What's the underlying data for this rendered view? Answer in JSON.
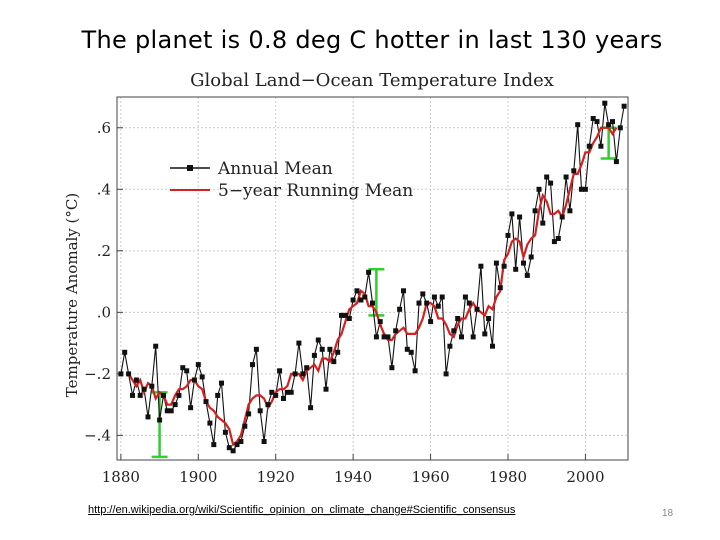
{
  "slide": {
    "title": "The planet is 0.8 deg C hotter in last 130 years",
    "source_url": "http://en.wikipedia.org/wiki/Scientific_opinion_on_climate_change#Scientific_consensus",
    "page_number": "18"
  },
  "colors": {
    "annual": "#111111",
    "running": "#d62020",
    "error_bars": "#33cc33",
    "grid": "#cccccc"
  },
  "chart_data": {
    "type": "line",
    "title": "Global Land−Ocean Temperature Index",
    "ylabel": "Temperature Anomaly (°C)",
    "xlabel": "",
    "xlim": [
      1879,
      2011
    ],
    "ylim": [
      -0.48,
      0.7
    ],
    "x_ticks": [
      1880,
      1900,
      1920,
      1940,
      1960,
      1980,
      2000
    ],
    "x_tick_labels": [
      "1880",
      "1900",
      "1920",
      "1940",
      "1960",
      "1980",
      "2000"
    ],
    "y_ticks": [
      -0.4,
      -0.2,
      0.0,
      0.2,
      0.4,
      0.6
    ],
    "y_tick_labels": [
      "−.4",
      "−.2",
      ".0",
      ".2",
      ".4",
      ".6"
    ],
    "grid": true,
    "legend_position": "top-left",
    "years": [
      1880,
      1881,
      1882,
      1883,
      1884,
      1885,
      1886,
      1887,
      1888,
      1889,
      1890,
      1891,
      1892,
      1893,
      1894,
      1895,
      1896,
      1897,
      1898,
      1899,
      1900,
      1901,
      1902,
      1903,
      1904,
      1905,
      1906,
      1907,
      1908,
      1909,
      1910,
      1911,
      1912,
      1913,
      1914,
      1915,
      1916,
      1917,
      1918,
      1919,
      1920,
      1921,
      1922,
      1923,
      1924,
      1925,
      1926,
      1927,
      1928,
      1929,
      1930,
      1931,
      1932,
      1933,
      1934,
      1935,
      1936,
      1937,
      1938,
      1939,
      1940,
      1941,
      1942,
      1943,
      1944,
      1945,
      1946,
      1947,
      1948,
      1949,
      1950,
      1951,
      1952,
      1953,
      1954,
      1955,
      1956,
      1957,
      1958,
      1959,
      1960,
      1961,
      1962,
      1963,
      1964,
      1965,
      1966,
      1967,
      1968,
      1969,
      1970,
      1971,
      1972,
      1973,
      1974,
      1975,
      1976,
      1977,
      1978,
      1979,
      1980,
      1981,
      1982,
      1983,
      1984,
      1985,
      1986,
      1987,
      1988,
      1989,
      1990,
      1991,
      1992,
      1993,
      1994,
      1995,
      1996,
      1997,
      1998,
      1999,
      2000,
      2001,
      2002,
      2003,
      2004,
      2005,
      2006,
      2007,
      2008,
      2009,
      2010
    ],
    "series": [
      {
        "name": "Annual Mean",
        "values": [
          -0.2,
          -0.13,
          -0.2,
          -0.27,
          -0.22,
          -0.27,
          -0.25,
          -0.34,
          -0.24,
          -0.11,
          -0.35,
          -0.27,
          -0.32,
          -0.32,
          -0.3,
          -0.27,
          -0.18,
          -0.19,
          -0.31,
          -0.22,
          -0.17,
          -0.21,
          -0.29,
          -0.36,
          -0.43,
          -0.27,
          -0.23,
          -0.39,
          -0.44,
          -0.45,
          -0.43,
          -0.42,
          -0.37,
          -0.33,
          -0.17,
          -0.12,
          -0.32,
          -0.42,
          -0.3,
          -0.26,
          -0.27,
          -0.19,
          -0.28,
          -0.26,
          -0.26,
          -0.2,
          -0.1,
          -0.2,
          -0.18,
          -0.31,
          -0.14,
          -0.09,
          -0.12,
          -0.25,
          -0.12,
          -0.16,
          -0.13,
          -0.01,
          -0.01,
          -0.02,
          0.04,
          0.07,
          0.04,
          0.05,
          0.13,
          0.03,
          -0.08,
          -0.03,
          -0.08,
          -0.08,
          -0.18,
          -0.06,
          0.01,
          0.07,
          -0.12,
          -0.13,
          -0.19,
          0.03,
          0.06,
          0.03,
          -0.03,
          0.05,
          0.02,
          0.05,
          -0.2,
          -0.11,
          -0.06,
          -0.02,
          -0.08,
          0.05,
          0.03,
          -0.08,
          0.01,
          0.15,
          -0.07,
          -0.02,
          -0.11,
          0.16,
          0.08,
          0.15,
          0.25,
          0.32,
          0.14,
          0.31,
          0.16,
          0.12,
          0.18,
          0.33,
          0.4,
          0.29,
          0.44,
          0.42,
          0.23,
          0.24,
          0.31,
          0.44,
          0.33,
          0.46,
          0.61,
          0.4,
          0.4,
          0.54,
          0.63,
          0.62,
          0.54,
          0.68,
          0.61,
          0.62,
          0.49,
          0.6,
          0.67
        ]
      },
      {
        "name": "5−year Running Mean",
        "values": [
          null,
          null,
          -0.2,
          -0.22,
          -0.24,
          -0.22,
          -0.26,
          -0.23,
          -0.24,
          -0.28,
          -0.26,
          -0.27,
          -0.3,
          -0.3,
          -0.27,
          -0.25,
          -0.25,
          -0.24,
          -0.22,
          -0.22,
          -0.24,
          -0.25,
          -0.29,
          -0.31,
          -0.32,
          -0.34,
          -0.35,
          -0.36,
          -0.38,
          -0.43,
          -0.42,
          -0.4,
          -0.35,
          -0.3,
          -0.28,
          -0.27,
          -0.27,
          -0.28,
          -0.31,
          -0.29,
          -0.26,
          -0.25,
          -0.25,
          -0.24,
          -0.2,
          -0.2,
          -0.2,
          -0.22,
          -0.19,
          -0.18,
          -0.17,
          -0.19,
          -0.15,
          -0.15,
          -0.16,
          -0.13,
          -0.09,
          -0.07,
          -0.03,
          0.01,
          0.02,
          0.03,
          0.07,
          0.06,
          0.02,
          0.02,
          0.0,
          -0.04,
          -0.07,
          -0.09,
          -0.09,
          -0.07,
          -0.06,
          -0.05,
          -0.07,
          -0.07,
          -0.07,
          -0.05,
          -0.02,
          0.03,
          0.03,
          0.02,
          -0.02,
          -0.02,
          -0.04,
          -0.07,
          -0.08,
          -0.04,
          -0.02,
          -0.02,
          0.01,
          0.03,
          0.01,
          0.0,
          -0.01,
          0.02,
          0.01,
          0.05,
          0.07,
          0.17,
          0.19,
          0.23,
          0.24,
          0.23,
          0.18,
          0.22,
          0.24,
          0.25,
          0.33,
          0.38,
          0.36,
          0.32,
          0.32,
          0.33,
          0.31,
          0.35,
          0.4,
          0.45,
          0.45,
          0.48,
          0.52,
          0.52,
          0.55,
          0.57,
          0.6,
          0.6,
          0.6,
          0.58,
          0.6,
          null,
          null
        ]
      }
    ],
    "error_bars": [
      {
        "x": 1890,
        "low": -0.47,
        "high": -0.26
      },
      {
        "x": 1946,
        "low": -0.01,
        "high": 0.14
      },
      {
        "x": 2006,
        "low": 0.5,
        "high": 0.6
      }
    ]
  }
}
